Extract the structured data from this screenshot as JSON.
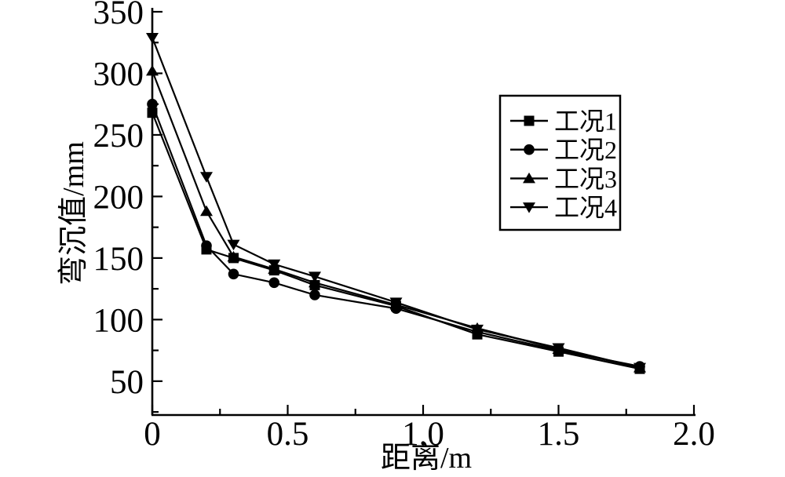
{
  "chart_data": {
    "type": "line",
    "title": "",
    "xlabel": "距离/m",
    "ylabel": "弯沉值/mm",
    "x": [
      0,
      0.2,
      0.3,
      0.45,
      0.6,
      0.9,
      1.2,
      1.5,
      1.8
    ],
    "series": [
      {
        "name": "工况1",
        "marker": "square",
        "values": [
          268,
          157,
          150,
          140,
          128,
          111,
          88,
          74,
          60
        ]
      },
      {
        "name": "工况2",
        "marker": "circle",
        "values": [
          275,
          160,
          137,
          130,
          120,
          109,
          90,
          75,
          62
        ]
      },
      {
        "name": "工况3",
        "marker": "triangle-up",
        "values": [
          302,
          188,
          151,
          141,
          130,
          112,
          93,
          76,
          61
        ]
      },
      {
        "name": "工况4",
        "marker": "triangle-down",
        "values": [
          329,
          216,
          161,
          145,
          135,
          114,
          92,
          77,
          61
        ]
      }
    ],
    "xlim": [
      0,
      2.0
    ],
    "ylim": [
      22.5,
      350
    ],
    "x_major_ticks": [
      0,
      0.5,
      1.0,
      1.5,
      2.0
    ],
    "x_tick_labels": [
      "0",
      "0.5",
      "1.0",
      "1.5",
      "2.0"
    ],
    "x_minor_ticks": [
      0.25,
      0.75,
      1.25,
      1.75
    ],
    "y_major_ticks": [
      50,
      100,
      150,
      200,
      250,
      300,
      350
    ],
    "y_tick_labels": [
      "50",
      "100",
      "150",
      "200",
      "250",
      "300",
      "350"
    ],
    "y_minor_ticks": [
      25,
      75,
      125,
      175,
      225,
      275,
      325
    ],
    "grid": false,
    "ticks_direction": "in",
    "legend_position": "inside-upper-right-box",
    "line_color": "#000000",
    "axis_color": "#000000",
    "background": "#ffffff"
  }
}
